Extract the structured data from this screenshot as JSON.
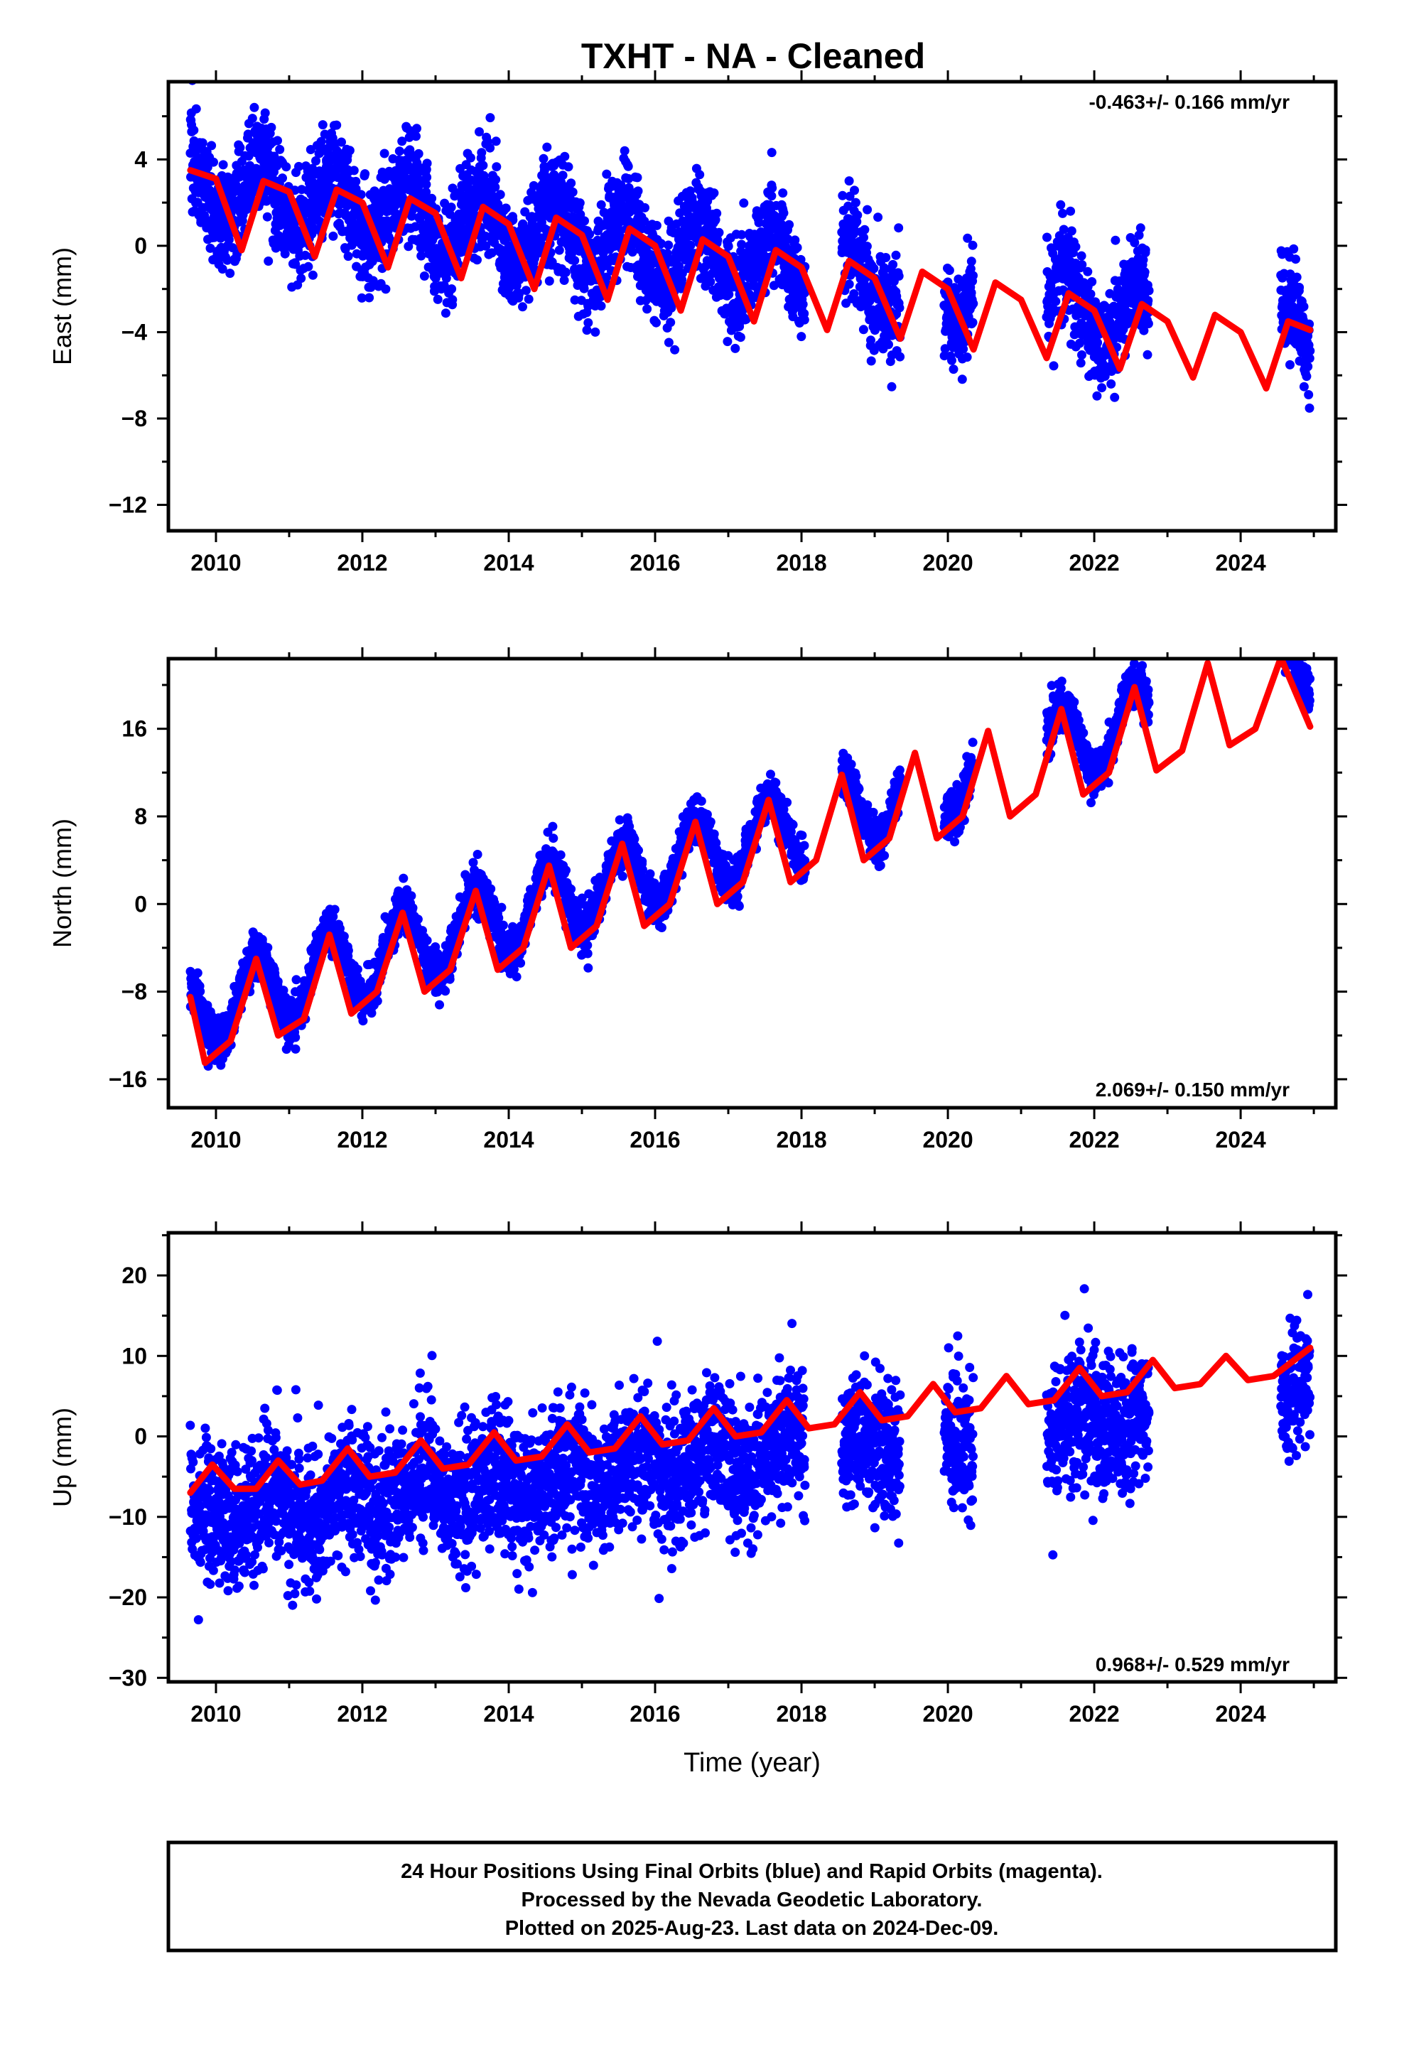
{
  "title": "TXHT  - NA - Cleaned",
  "colors": {
    "final_orbits": "#0000ff",
    "model": "#ff0000",
    "frame": "#000000"
  },
  "footer": {
    "line1": "24 Hour Positions Using Final Orbits (blue) and Rapid Orbits (magenta).",
    "line2": "Processed by the Nevada Geodetic Laboratory.",
    "line3": "Plotted on 2025-Aug-23. Last data on 2024-Dec-09."
  },
  "chart_data": [
    {
      "type": "scatter",
      "component": "east",
      "ylabel": "East (mm)",
      "xlabel": "",
      "rate_label": "-0.463+/- 0.166 mm/yr",
      "xlim": [
        2009.35,
        2025.3
      ],
      "ylim": [
        -13.2,
        7.6
      ],
      "xticks": [
        2010,
        2012,
        2014,
        2016,
        2018,
        2020,
        2022,
        2024
      ],
      "yticks": [
        -12,
        -8,
        -4,
        0,
        4
      ],
      "grid": false,
      "series": [
        {
          "kind": "points",
          "marker_color": "#0000ff",
          "segments": [
            [
              2009.65,
              2018.05
            ],
            [
              2018.55,
              2019.35
            ],
            [
              2019.95,
              2020.35
            ],
            [
              2021.35,
              2022.75
            ],
            [
              2024.55,
              2024.95
            ]
          ],
          "trend_at_start": 2.8,
          "rate_mm_yr": -0.463,
          "annual_amp": 1.5,
          "annual_peak": 0.6,
          "noise_sd": 1.2
        },
        {
          "kind": "model",
          "color": "#ff0000",
          "x": [
            2009.65,
            2010.0,
            2010.35,
            2010.65,
            2011.0,
            2011.35,
            2011.65,
            2012.0,
            2012.35,
            2012.65,
            2013.0,
            2013.35,
            2013.65,
            2014.0,
            2014.35,
            2014.65,
            2015.0,
            2015.35,
            2015.65,
            2016.0,
            2016.35,
            2016.65,
            2017.0,
            2017.35,
            2017.65,
            2018.0,
            2018.35,
            2018.65,
            2019.0,
            2019.35,
            2019.65,
            2020.0,
            2020.35,
            2020.65,
            2021.0,
            2021.35,
            2021.65,
            2022.0,
            2022.35,
            2022.65,
            2023.0,
            2023.35,
            2023.65,
            2024.0,
            2024.35,
            2024.65,
            2024.95
          ],
          "y": [
            3.5,
            3.1,
            -0.2,
            3.0,
            2.5,
            -0.5,
            2.6,
            2.0,
            -1.0,
            2.2,
            1.5,
            -1.5,
            1.8,
            1.0,
            -2.0,
            1.3,
            0.5,
            -2.5,
            0.8,
            0.0,
            -3.0,
            0.3,
            -0.5,
            -3.5,
            -0.2,
            -1.0,
            -3.9,
            -0.7,
            -1.5,
            -4.3,
            -1.2,
            -2.0,
            -4.8,
            -1.7,
            -2.5,
            -5.2,
            -2.2,
            -3.0,
            -5.7,
            -2.7,
            -3.5,
            -6.1,
            -3.2,
            -4.0,
            -6.6,
            -3.5,
            -3.9
          ]
        }
      ]
    },
    {
      "type": "scatter",
      "component": "north",
      "ylabel": "North (mm)",
      "xlabel": "",
      "rate_label": "2.069+/- 0.150 mm/yr",
      "xlim": [
        2009.35,
        2025.3
      ],
      "ylim": [
        -18.6,
        22.4
      ],
      "xticks": [
        2010,
        2012,
        2014,
        2016,
        2018,
        2020,
        2022,
        2024
      ],
      "yticks": [
        -16,
        -8,
        0,
        8,
        16
      ],
      "grid": false,
      "series": [
        {
          "kind": "points",
          "marker_color": "#0000ff",
          "segments": [
            [
              2009.65,
              2018.05
            ],
            [
              2018.55,
              2019.35
            ],
            [
              2019.95,
              2020.35
            ],
            [
              2021.35,
              2022.75
            ],
            [
              2024.55,
              2024.95
            ]
          ],
          "trend_at_start": -10.0,
          "rate_mm_yr": 2.069,
          "annual_amp": 3.5,
          "annual_peak": 0.55,
          "noise_sd": 1.0
        },
        {
          "kind": "model",
          "color": "#ff0000",
          "x": [
            2009.65,
            2009.85,
            2010.2,
            2010.55,
            2010.85,
            2011.2,
            2011.55,
            2011.85,
            2012.2,
            2012.55,
            2012.85,
            2013.2,
            2013.55,
            2013.85,
            2014.2,
            2014.55,
            2014.85,
            2015.2,
            2015.55,
            2015.85,
            2016.2,
            2016.55,
            2016.85,
            2017.2,
            2017.55,
            2017.85,
            2018.2,
            2018.55,
            2018.85,
            2019.2,
            2019.55,
            2019.85,
            2020.2,
            2020.55,
            2020.85,
            2021.2,
            2021.55,
            2021.85,
            2022.2,
            2022.55,
            2022.85,
            2023.2,
            2023.55,
            2023.85,
            2024.2,
            2024.55,
            2024.95
          ],
          "y": [
            -8.5,
            -14.5,
            -12.5,
            -5.0,
            -12.0,
            -10.5,
            -2.8,
            -10.0,
            -8.0,
            -0.8,
            -8.0,
            -6.0,
            1.2,
            -6.0,
            -4.0,
            3.5,
            -4.0,
            -2.0,
            5.5,
            -2.0,
            0.0,
            7.5,
            0.0,
            2.0,
            9.5,
            2.0,
            4.0,
            11.8,
            4.0,
            6.0,
            13.8,
            6.0,
            8.0,
            15.8,
            8.0,
            10.0,
            17.8,
            10.0,
            12.0,
            19.8,
            12.2,
            14.0,
            22.0,
            14.5,
            16.0,
            22.5,
            16.2
          ]
        }
      ]
    },
    {
      "type": "scatter",
      "component": "up",
      "ylabel": "Up (mm)",
      "xlabel": "Time (year)",
      "rate_label": "0.968+/- 0.529 mm/yr",
      "xlim": [
        2009.35,
        2025.3
      ],
      "ylim": [
        -30.5,
        25.3
      ],
      "xticks": [
        2010,
        2012,
        2014,
        2016,
        2018,
        2020,
        2022,
        2024
      ],
      "yticks": [
        -30,
        -20,
        -10,
        0,
        10,
        20
      ],
      "grid": false,
      "series": [
        {
          "kind": "points",
          "marker_color": "#0000ff",
          "segments": [
            [
              2009.65,
              2018.05
            ],
            [
              2018.55,
              2019.35
            ],
            [
              2019.95,
              2020.35
            ],
            [
              2021.35,
              2022.75
            ],
            [
              2024.55,
              2024.95
            ]
          ],
          "trend_at_start": -10.0,
          "rate_mm_yr": 0.968,
          "annual_amp": 2.0,
          "annual_peak": 0.8,
          "noise_sd": 4.3
        },
        {
          "kind": "model",
          "color": "#ff0000",
          "x": [
            2009.65,
            2009.95,
            2010.25,
            2010.55,
            2010.85,
            2011.15,
            2011.45,
            2011.8,
            2012.1,
            2012.45,
            2012.8,
            2013.1,
            2013.45,
            2013.8,
            2014.1,
            2014.45,
            2014.8,
            2015.1,
            2015.45,
            2015.8,
            2016.1,
            2016.45,
            2016.8,
            2017.1,
            2017.45,
            2017.8,
            2018.1,
            2018.45,
            2018.8,
            2019.1,
            2019.45,
            2019.8,
            2020.1,
            2020.45,
            2020.8,
            2021.1,
            2021.45,
            2021.8,
            2022.1,
            2022.45,
            2022.8,
            2023.1,
            2023.45,
            2023.8,
            2024.1,
            2024.45,
            2024.95
          ],
          "y": [
            -7.0,
            -3.5,
            -6.5,
            -6.5,
            -3.0,
            -6.0,
            -5.5,
            -1.5,
            -5.0,
            -4.5,
            -0.5,
            -4.0,
            -3.5,
            0.5,
            -3.0,
            -2.5,
            1.5,
            -2.0,
            -1.5,
            2.5,
            -1.0,
            -0.5,
            3.5,
            0.0,
            0.5,
            4.5,
            1.0,
            1.5,
            5.5,
            2.0,
            2.5,
            6.5,
            3.0,
            3.5,
            7.5,
            4.0,
            4.5,
            8.5,
            5.0,
            5.5,
            9.5,
            6.0,
            6.5,
            10.0,
            7.0,
            7.5,
            11.0
          ]
        }
      ]
    }
  ]
}
